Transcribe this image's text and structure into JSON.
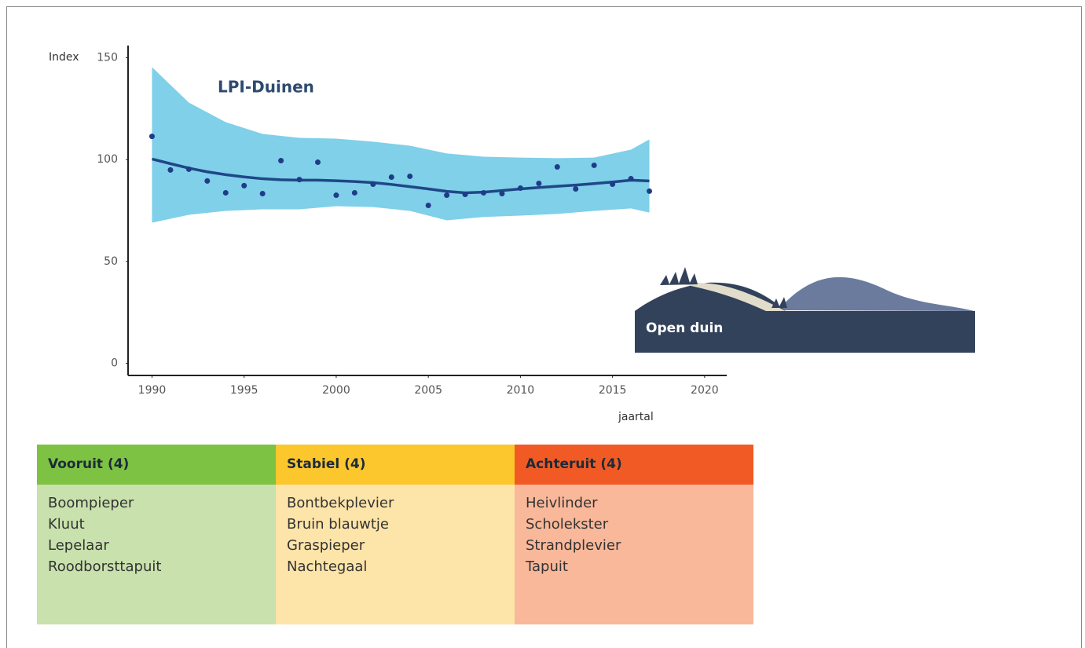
{
  "chart_data": {
    "type": "scatter",
    "title": "LPI-Duinen",
    "y_label": "Index",
    "x_label": "jaartal",
    "xlim": [
      1988.7,
      2021.2
    ],
    "ylim": [
      -6,
      156
    ],
    "xticks": [
      1990,
      1995,
      2000,
      2005,
      2010,
      2015,
      2020
    ],
    "yticks": [
      0,
      50,
      100,
      150
    ],
    "points": {
      "color": "#1f3c88",
      "x": [
        1990,
        1991,
        1992,
        1993,
        1994,
        1995,
        1996,
        1997,
        1998,
        1999,
        2000,
        2001,
        2002,
        2003,
        2004,
        2005,
        2006,
        2007,
        2008,
        2009,
        2010,
        2011,
        2012,
        2013,
        2014,
        2015,
        2016,
        2017
      ],
      "values": [
        111.4,
        94.9,
        95.3,
        89.5,
        83.7,
        87.2,
        83.3,
        99.5,
        90.2,
        98.7,
        82.5,
        83.7,
        87.9,
        91.4,
        91.8,
        77.5,
        82.5,
        82.9,
        83.7,
        83.3,
        86.0,
        88.3,
        96.4,
        85.6,
        97.2,
        87.9,
        90.6,
        84.5
      ]
    },
    "trend": {
      "color": "#1f4788",
      "x": [
        1990,
        1991,
        1992,
        1993,
        1994,
        1995,
        1996,
        1997,
        1998,
        1999,
        2000,
        2001,
        2002,
        2003,
        2004,
        2005,
        2006,
        2007,
        2008,
        2009,
        2010,
        2011,
        2012,
        2013,
        2014,
        2015,
        2016,
        2017
      ],
      "values": [
        100.3,
        98,
        95.8,
        94,
        92.6,
        91.5,
        90.6,
        90.1,
        89.9,
        89.9,
        89.6,
        89.2,
        88.7,
        87.8,
        86.7,
        85.6,
        84.4,
        83.7,
        84,
        84.8,
        85.6,
        86.3,
        86.9,
        87.5,
        88.2,
        89,
        89.9,
        89.5
      ]
    },
    "band": {
      "color": "#7fd0e8",
      "x": [
        1990,
        1992,
        1994,
        1996,
        1998,
        2000,
        2002,
        2004,
        2006,
        2008,
        2010,
        2012,
        2014,
        2016,
        2017
      ],
      "upper": [
        145.4,
        128,
        118.4,
        112.6,
        110.7,
        110.3,
        108.8,
        106.8,
        103,
        101.4,
        101,
        100.7,
        101,
        104.9,
        109.9
      ],
      "lower": [
        69,
        72.9,
        74.8,
        75.6,
        75.6,
        77.1,
        76.7,
        74.8,
        70.2,
        71.8,
        72.5,
        73.3,
        74.8,
        76,
        74
      ]
    }
  },
  "illustration": {
    "label": "Open duin"
  },
  "table": {
    "columns": [
      {
        "header": "Vooruit (4)",
        "header_color": "#7dc242",
        "body_color": "#c8e1ad",
        "items": [
          "Boompieper",
          "Kluut",
          "Lepelaar",
          "Roodborsttapuit"
        ]
      },
      {
        "header": "Stabiel (4)",
        "header_color": "#fcc62d",
        "body_color": "#fde4a9",
        "items": [
          "Bontbekplevier",
          "Bruin blauwtje",
          "Graspieper",
          "Nachtegaal"
        ]
      },
      {
        "header": "Achteruit (4)",
        "header_color": "#f15a24",
        "body_color": "#f9b89a",
        "items": [
          "Heivlinder",
          "Scholekster",
          "Strandplevier",
          "Tapuit"
        ]
      }
    ]
  }
}
